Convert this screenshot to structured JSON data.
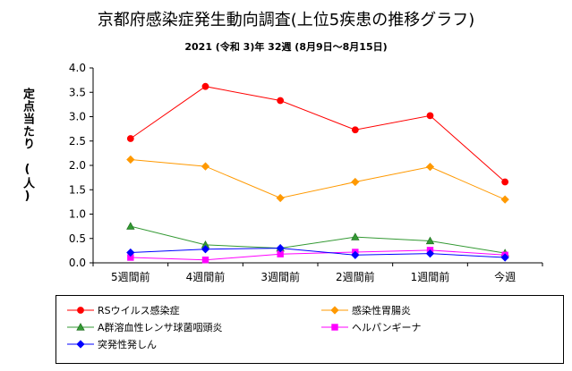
{
  "chart_data": {
    "type": "line",
    "title": "京都府感染症発生動向調査(上位5疾患の推移グラフ)",
    "subtitle": "2021 (令和 3)年  32週  (8月9日～8月15日)",
    "ylabel": "定点当たり　(人)",
    "xlabel": "",
    "categories": [
      "5週間前",
      "4週間前",
      "3週間前",
      "2週間前",
      "1週間前",
      "今週"
    ],
    "ylim": [
      0,
      4
    ],
    "yticks": [
      "0.0",
      "0.5",
      "1.0",
      "1.5",
      "2.0",
      "2.5",
      "3.0",
      "3.5",
      "4.0"
    ],
    "grid": false,
    "legend_position": "bottom",
    "series": [
      {
        "name": "RSウイルス感染症",
        "color": "#ff0000",
        "marker": "circle",
        "values": [
          2.55,
          3.62,
          3.33,
          2.73,
          3.02,
          1.66
        ]
      },
      {
        "name": "感染性胃腸炎",
        "color": "#ff9900",
        "marker": "diamond",
        "values": [
          2.12,
          1.98,
          1.33,
          1.66,
          1.97,
          1.3
        ]
      },
      {
        "name": "A群溶血性レンサ球菌咽頭炎",
        "color": "#339933",
        "marker": "triangle",
        "values": [
          0.75,
          0.37,
          0.3,
          0.53,
          0.45,
          0.2
        ]
      },
      {
        "name": "ヘルパンギーナ",
        "color": "#ff00ff",
        "marker": "square",
        "values": [
          0.11,
          0.06,
          0.18,
          0.22,
          0.26,
          0.16
        ]
      },
      {
        "name": "突発性発しん",
        "color": "#0000ff",
        "marker": "diamond",
        "values": [
          0.21,
          0.28,
          0.3,
          0.16,
          0.19,
          0.11
        ]
      }
    ]
  }
}
